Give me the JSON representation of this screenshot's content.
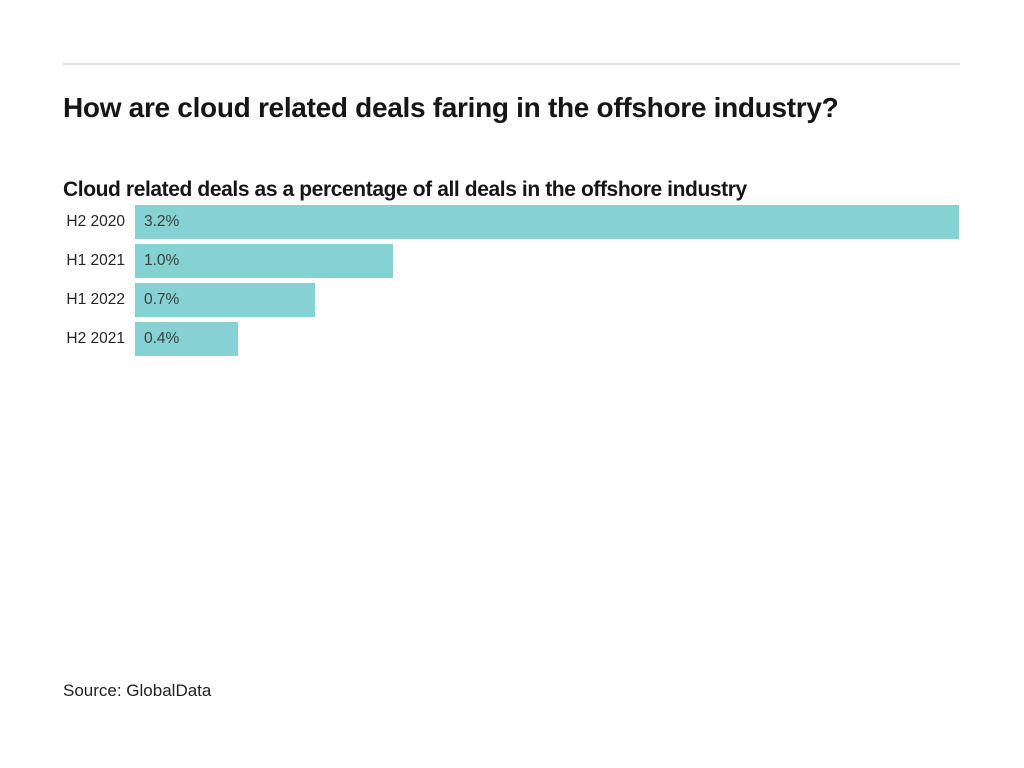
{
  "chart_data": {
    "type": "bar",
    "orientation": "horizontal",
    "title": "How are cloud related deals faring in the offshore industry?",
    "subtitle": "Cloud related deals as a percentage of all deals in the offshore industry",
    "categories": [
      "H2 2020",
      "H1 2021",
      "H1 2022",
      "H2 2021"
    ],
    "values": [
      3.2,
      1.0,
      0.7,
      0.4
    ],
    "value_labels": [
      "3.2%",
      "1.0%",
      "0.7%",
      "0.4%"
    ],
    "xlabel": "",
    "ylabel": "",
    "xlim": [
      0,
      3.2
    ],
    "grid": false,
    "legend": "none",
    "bar_color": "#86d1d2",
    "rule_color": "#e2e2e2"
  },
  "footer": {
    "source": "Source: GlobalData"
  }
}
